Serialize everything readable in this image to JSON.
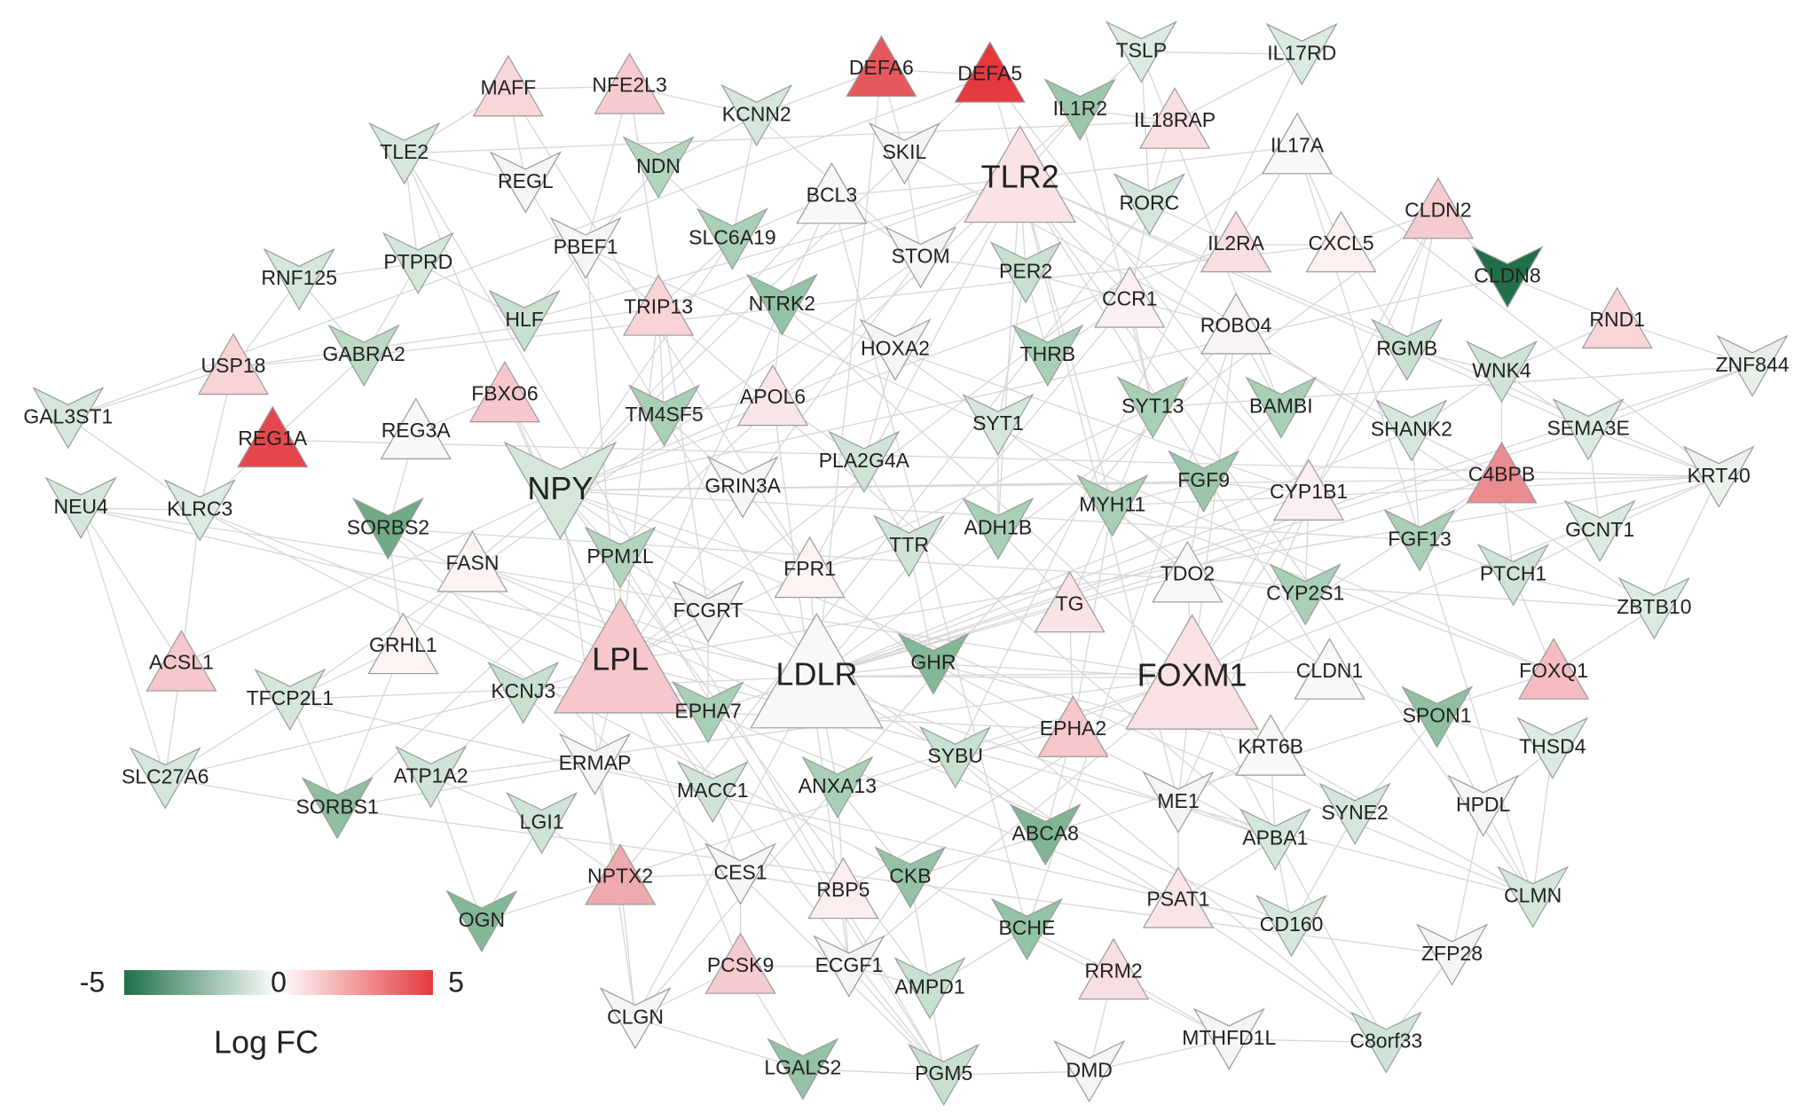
{
  "nodes": [
    {
      "label": "TSLP",
      "shape": "v",
      "color": "#dcebe1"
    },
    {
      "label": "IL17RD",
      "shape": "v",
      "color": "#dcebe1"
    },
    {
      "label": "MAFF",
      "shape": "triangle",
      "color": "#f8d6d9"
    },
    {
      "label": "NFE2L3",
      "shape": "triangle",
      "color": "#f6cbcf"
    },
    {
      "label": "KCNN2",
      "shape": "v",
      "color": "#d5e7db"
    },
    {
      "label": "DEFA6",
      "shape": "triangle",
      "color": "#e6585c"
    },
    {
      "label": "DEFA5",
      "shape": "triangle",
      "color": "#e5393e"
    },
    {
      "label": "IL1R2",
      "shape": "v",
      "color": "#9cc7ab"
    },
    {
      "label": "IL18RAP",
      "shape": "triangle",
      "color": "#f9dfe1"
    },
    {
      "label": "IL17A",
      "shape": "triangle",
      "color": "#f8f8f8"
    },
    {
      "label": "TLE2",
      "shape": "v",
      "color": "#d5e7db"
    },
    {
      "label": "REGL",
      "shape": "v",
      "color": "#f4f6f4"
    },
    {
      "label": "NDN",
      "shape": "v",
      "color": "#b3d5bf"
    },
    {
      "label": "SKIL",
      "shape": "v",
      "color": "#f4f6f4"
    },
    {
      "label": "BCL3",
      "shape": "triangle",
      "color": "#f8f8f8"
    },
    {
      "label": "TLR2",
      "shape": "triangle",
      "color": "#fae3e4"
    },
    {
      "label": "CLDN2",
      "shape": "triangle",
      "color": "#f6cbcf"
    },
    {
      "label": "RORC",
      "shape": "v",
      "color": "#d5e7db"
    },
    {
      "label": "PBEF1",
      "shape": "v",
      "color": "#f4f6f4"
    },
    {
      "label": "SLC6A19",
      "shape": "v",
      "color": "#a9cfb6"
    },
    {
      "label": "STOM",
      "shape": "v",
      "color": "#f4f6f4"
    },
    {
      "label": "IL2RA",
      "shape": "triangle",
      "color": "#f9dfe1"
    },
    {
      "label": "CXCL5",
      "shape": "triangle",
      "color": "#fcf0f0"
    },
    {
      "label": "CLDN8",
      "shape": "v",
      "color": "#1f7048"
    },
    {
      "label": "RNF125",
      "shape": "v",
      "color": "#d5e7db"
    },
    {
      "label": "PTPRD",
      "shape": "v",
      "color": "#d5e7db"
    },
    {
      "label": "PER2",
      "shape": "v",
      "color": "#c8e0d0"
    },
    {
      "label": "CCR1",
      "shape": "triangle",
      "color": "#fbf0f1"
    },
    {
      "label": "TRIP13",
      "shape": "triangle",
      "color": "#f8d4d7"
    },
    {
      "label": "NTRK2",
      "shape": "v",
      "color": "#93c2a4"
    },
    {
      "label": "HLF",
      "shape": "v",
      "color": "#c8e0d0"
    },
    {
      "label": "RND1",
      "shape": "triangle",
      "color": "#f8d6d9"
    },
    {
      "label": "ROBO4",
      "shape": "triangle",
      "color": "#f9f3f3"
    },
    {
      "label": "RGMB",
      "shape": "v",
      "color": "#c8e0d0"
    },
    {
      "label": "HOXA2",
      "shape": "v",
      "color": "#f4f6f4"
    },
    {
      "label": "THRB",
      "shape": "v",
      "color": "#a9cfb6"
    },
    {
      "label": "USP18",
      "shape": "triangle",
      "color": "#f8d4d7"
    },
    {
      "label": "GABRA2",
      "shape": "v",
      "color": "#bcdac6"
    },
    {
      "label": "WNK4",
      "shape": "v",
      "color": "#cfe4d6"
    },
    {
      "label": "ZNF844",
      "shape": "v",
      "color": "#e6f0e9"
    },
    {
      "label": "FBXO6",
      "shape": "triangle",
      "color": "#f6c7cc"
    },
    {
      "label": "APOL6",
      "shape": "triangle",
      "color": "#fae6e7"
    },
    {
      "label": "TM4SF5",
      "shape": "v",
      "color": "#a9cfb6"
    },
    {
      "label": "SYT13",
      "shape": "v",
      "color": "#a9cfb6"
    },
    {
      "label": "BAMBI",
      "shape": "v",
      "color": "#a9cfb6"
    },
    {
      "label": "GAL3ST1",
      "shape": "v",
      "color": "#d5e7db"
    },
    {
      "label": "REG1A",
      "shape": "triangle",
      "color": "#e4484c"
    },
    {
      "label": "REG3A",
      "shape": "triangle",
      "color": "#f8f8f8"
    },
    {
      "label": "SYT1",
      "shape": "v",
      "color": "#d5e7db"
    },
    {
      "label": "SHANK2",
      "shape": "v",
      "color": "#d5e7db"
    },
    {
      "label": "SEMA3E",
      "shape": "v",
      "color": "#dcebe1"
    },
    {
      "label": "NPY",
      "shape": "v",
      "color": "#d5e7db"
    },
    {
      "label": "PLA2G4A",
      "shape": "v",
      "color": "#cfe4d6"
    },
    {
      "label": "C4BPB",
      "shape": "triangle",
      "color": "#ea8c90"
    },
    {
      "label": "KRT40",
      "shape": "v",
      "color": "#eaf2ec"
    },
    {
      "label": "NEU4",
      "shape": "v",
      "color": "#d5e7db"
    },
    {
      "label": "KLRC3",
      "shape": "v",
      "color": "#dcebe1"
    },
    {
      "label": "SORBS2",
      "shape": "v",
      "color": "#6fab84"
    },
    {
      "label": "GRIN3A",
      "shape": "v",
      "color": "#f4f6f4"
    },
    {
      "label": "FGF9",
      "shape": "v",
      "color": "#9cc7ab"
    },
    {
      "label": "CYP1B1",
      "shape": "triangle",
      "color": "#fbf0f1"
    },
    {
      "label": "MYH11",
      "shape": "v",
      "color": "#a9cfb6"
    },
    {
      "label": "ADH1B",
      "shape": "v",
      "color": "#a9cfb6"
    },
    {
      "label": "TTR",
      "shape": "v",
      "color": "#cfe4d6"
    },
    {
      "label": "FGF13",
      "shape": "v",
      "color": "#a9cfb6"
    },
    {
      "label": "GCNT1",
      "shape": "v",
      "color": "#dcebe1"
    },
    {
      "label": "FASN",
      "shape": "triangle",
      "color": "#fcf3f3"
    },
    {
      "label": "PPM1L",
      "shape": "v",
      "color": "#b3d5bf"
    },
    {
      "label": "FPR1",
      "shape": "triangle",
      "color": "#fcf3f3"
    },
    {
      "label": "TDO2",
      "shape": "triangle",
      "color": "#f8f8f8"
    },
    {
      "label": "CYP2S1",
      "shape": "v",
      "color": "#a9cfb6"
    },
    {
      "label": "PTCH1",
      "shape": "v",
      "color": "#cfe4d6"
    },
    {
      "label": "ZBTB10",
      "shape": "v",
      "color": "#dcebe1"
    },
    {
      "label": "FCGRT",
      "shape": "v",
      "color": "#f4f6f4"
    },
    {
      "label": "TG",
      "shape": "triangle",
      "color": "#fae3e4"
    },
    {
      "label": "GRHL1",
      "shape": "triangle",
      "color": "#fcf3f3"
    },
    {
      "label": "LPL",
      "shape": "triangle",
      "color": "#f6c7cc"
    },
    {
      "label": "LDLR",
      "shape": "triangle",
      "color": "#f8f8f8"
    },
    {
      "label": "GHR",
      "shape": "v",
      "color": "#82b896"
    },
    {
      "label": "FOXM1",
      "shape": "triangle",
      "color": "#fae1e3"
    },
    {
      "label": "CLDN1",
      "shape": "triangle",
      "color": "#f8f8f8"
    },
    {
      "label": "FOXQ1",
      "shape": "triangle",
      "color": "#f4bcc1"
    },
    {
      "label": "ACSL1",
      "shape": "triangle",
      "color": "#f6c7cc"
    },
    {
      "label": "TFCP2L1",
      "shape": "v",
      "color": "#d5e7db"
    },
    {
      "label": "KCNJ3",
      "shape": "v",
      "color": "#c8e0d0"
    },
    {
      "label": "EPHA7",
      "shape": "v",
      "color": "#a9cfb6"
    },
    {
      "label": "EPHA2",
      "shape": "triangle",
      "color": "#f6c7cc"
    },
    {
      "label": "SPON1",
      "shape": "v",
      "color": "#8fbfa0"
    },
    {
      "label": "KRT6B",
      "shape": "triangle",
      "color": "#f8f8f8"
    },
    {
      "label": "THSD4",
      "shape": "v",
      "color": "#dcebe1"
    },
    {
      "label": "SLC27A6",
      "shape": "v",
      "color": "#d5e7db"
    },
    {
      "label": "ATP1A2",
      "shape": "v",
      "color": "#cfe4d6"
    },
    {
      "label": "ERMAP",
      "shape": "v",
      "color": "#f4f6f4"
    },
    {
      "label": "SYBU",
      "shape": "v",
      "color": "#c8e0d0"
    },
    {
      "label": "ANXA13",
      "shape": "v",
      "color": "#a9cfb6"
    },
    {
      "label": "MACC1",
      "shape": "v",
      "color": "#cfe4d6"
    },
    {
      "label": "SORBS1",
      "shape": "v",
      "color": "#8fbfa0"
    },
    {
      "label": "ME1",
      "shape": "v",
      "color": "#f4f6f4"
    },
    {
      "label": "SYNE2",
      "shape": "v",
      "color": "#d5e7db"
    },
    {
      "label": "HPDL",
      "shape": "v",
      "color": "#f4f6f4"
    },
    {
      "label": "LGI1",
      "shape": "v",
      "color": "#cfe4d6"
    },
    {
      "label": "ABCA8",
      "shape": "v",
      "color": "#7fb593"
    },
    {
      "label": "APBA1",
      "shape": "v",
      "color": "#d5e7db"
    },
    {
      "label": "NPTX2",
      "shape": "triangle",
      "color": "#eeaaae"
    },
    {
      "label": "CES1",
      "shape": "v",
      "color": "#f4f6f4"
    },
    {
      "label": "RBP5",
      "shape": "triangle",
      "color": "#fbeeef"
    },
    {
      "label": "CKB",
      "shape": "v",
      "color": "#93c2a4"
    },
    {
      "label": "PSAT1",
      "shape": "triangle",
      "color": "#fae6e7"
    },
    {
      "label": "CLMN",
      "shape": "v",
      "color": "#d5e7db"
    },
    {
      "label": "OGN",
      "shape": "v",
      "color": "#82b896"
    },
    {
      "label": "BCHE",
      "shape": "v",
      "color": "#93c2a4"
    },
    {
      "label": "CD160",
      "shape": "v",
      "color": "#d5e7db"
    },
    {
      "label": "ZFP28",
      "shape": "v",
      "color": "#f4f6f4"
    },
    {
      "label": "PCSK9",
      "shape": "triangle",
      "color": "#f6cbcf"
    },
    {
      "label": "ECGF1",
      "shape": "v",
      "color": "#f4f6f4"
    },
    {
      "label": "AMPD1",
      "shape": "v",
      "color": "#c8e0d0"
    },
    {
      "label": "RRM2",
      "shape": "triangle",
      "color": "#f9dfe1"
    },
    {
      "label": "CLGN",
      "shape": "v",
      "color": "#f4f6f4"
    },
    {
      "label": "MTHFD1L",
      "shape": "v",
      "color": "#f4f6f4"
    },
    {
      "label": "C8orf33",
      "shape": "v",
      "color": "#cfe4d6"
    },
    {
      "label": "LGALS2",
      "shape": "v",
      "color": "#93c2a4"
    },
    {
      "label": "PGM5",
      "shape": "v",
      "color": "#c8e0d0"
    },
    {
      "label": "DMD",
      "shape": "v",
      "color": "#f4f6f4"
    }
  ],
  "legend": {
    "title": "Log FC",
    "min": -5,
    "max": 5,
    "ticks": [
      -5,
      0,
      5
    ],
    "colors": [
      "#1f7048",
      "#ffffff",
      "#e5393e"
    ]
  }
}
